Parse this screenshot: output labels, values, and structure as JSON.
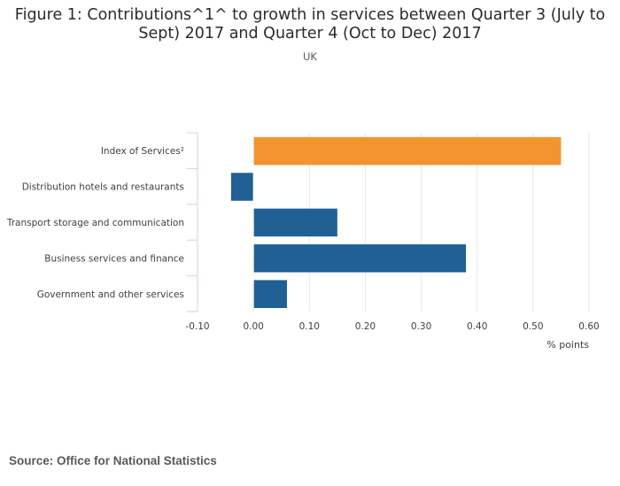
{
  "chart_data": {
    "type": "bar",
    "orientation": "horizontal",
    "title_lines": [
      "Figure 1: Contributions^1^ to growth in services between Quarter 3 (July to",
      "Sept) 2017 and Quarter 4 (Oct to Dec) 2017"
    ],
    "subtitle": "UK",
    "categories": [
      "Index of Services²",
      "Distribution hotels and restaurants",
      "Transport storage and communication",
      "Business services and finance",
      "Government and other services"
    ],
    "values": [
      0.55,
      -0.04,
      0.15,
      0.38,
      0.06
    ],
    "highlight_index": 0,
    "xlabel": "% points",
    "xlim": [
      -0.1,
      0.6
    ],
    "xticks": [
      -0.1,
      0.0,
      0.1,
      0.2,
      0.3,
      0.4,
      0.5,
      0.6
    ],
    "xtick_labels": [
      "-0.10",
      "0.00",
      "0.10",
      "0.20",
      "0.30",
      "0.40",
      "0.50",
      "0.60"
    ],
    "grid": true,
    "colors": {
      "highlight": "#f39431",
      "default": "#206095",
      "grid": "#e6e6e6",
      "axis": "#c8d4e3"
    }
  },
  "source": "Source: Office for National Statistics"
}
